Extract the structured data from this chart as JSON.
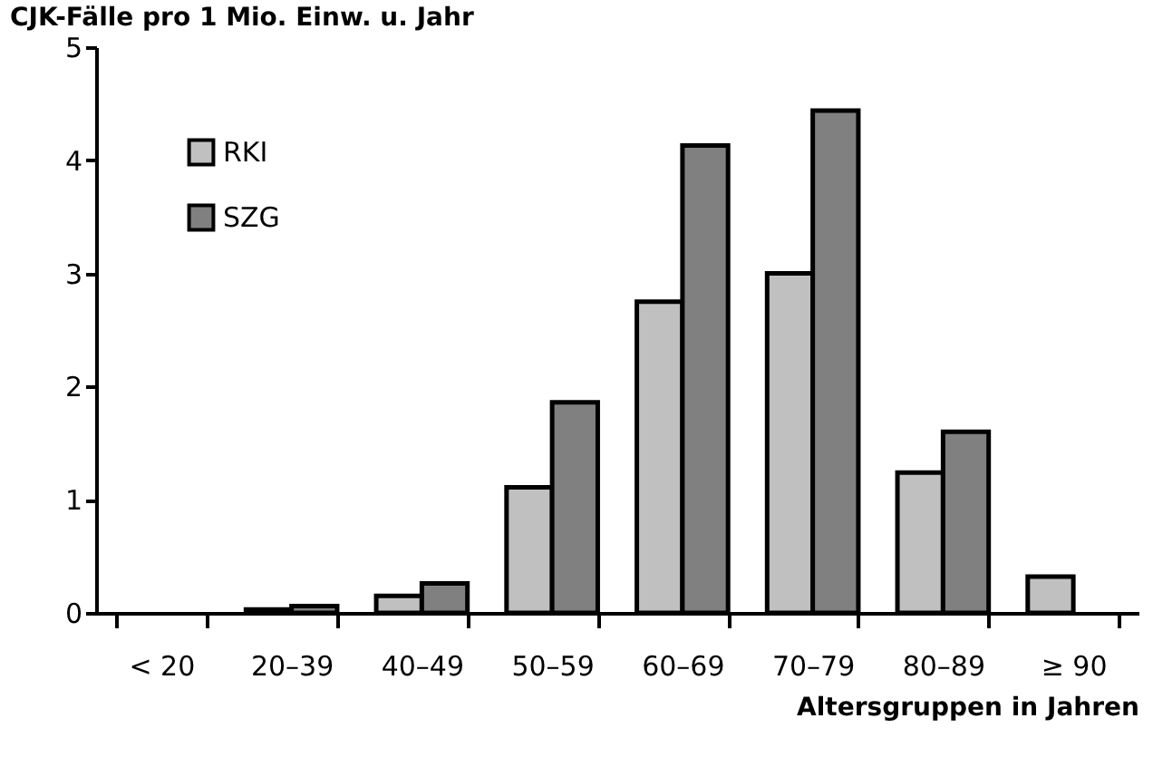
{
  "chart_data": {
    "type": "bar",
    "title": "CJK-Fälle pro 1 Mio. Einw. u. Jahr",
    "xlabel": "Altersgruppen in Jahren",
    "categories": [
      "< 20",
      "20–39",
      "40–49",
      "50–59",
      "60–69",
      "70–79",
      "80–89",
      "≥ 90"
    ],
    "series": [
      {
        "name": "RKI",
        "color": "#c0c0c0",
        "values": [
          0,
          0.03,
          0.15,
          1.11,
          2.75,
          3.0,
          1.24,
          0.32
        ]
      },
      {
        "name": "SZG",
        "color": "#808080",
        "values": [
          0,
          0.06,
          0.26,
          1.86,
          4.13,
          4.44,
          1.6,
          null
        ]
      }
    ],
    "ylim": [
      0,
      5
    ],
    "yticks": [
      0,
      1,
      2,
      3,
      4,
      5
    ],
    "grid": false,
    "legend": "top left"
  }
}
